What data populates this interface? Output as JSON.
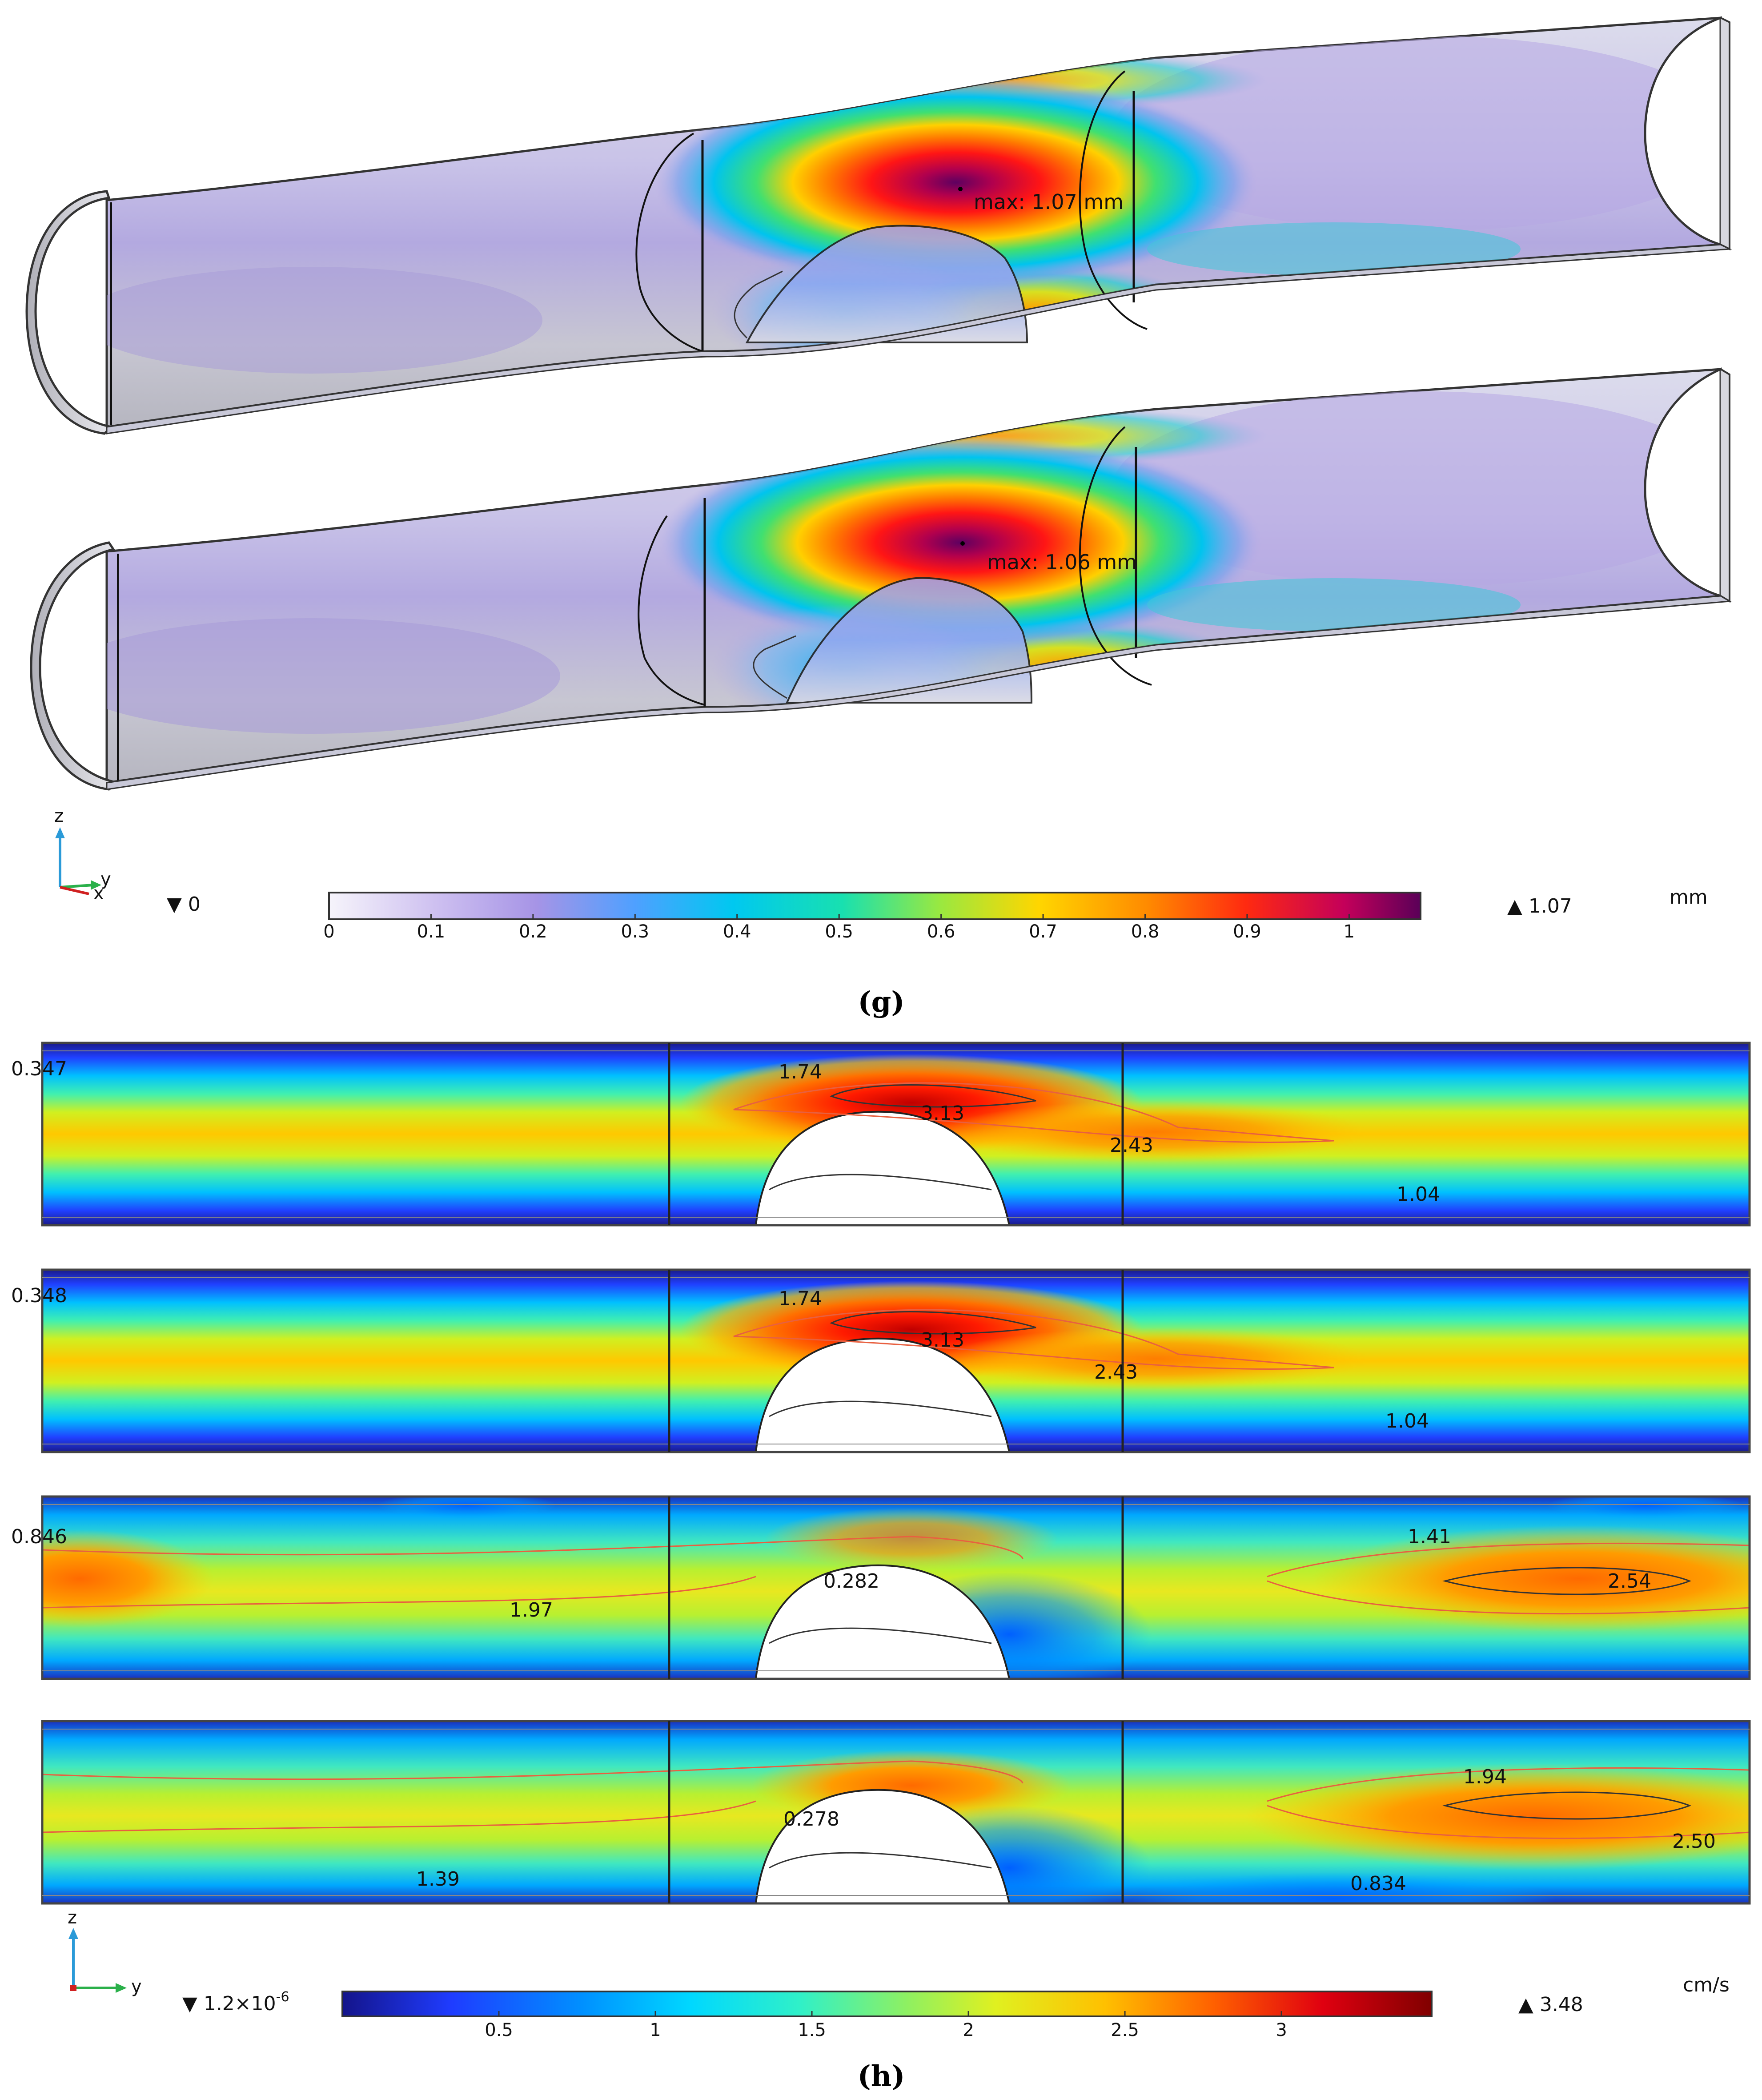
{
  "panel_g": {
    "caption": "(g)",
    "vessel_top": {
      "max_label": "max: 1.07 mm"
    },
    "vessel_bottom": {
      "max_label": "max: 1.06 mm"
    },
    "axes": {
      "z": "z",
      "y": "y",
      "x": "x"
    },
    "colorbar": {
      "min_label": "▼ 0",
      "max_label": "▲ 1.07",
      "unit": "mm",
      "ticks": [
        "0",
        "0.1",
        "0.2",
        "0.3",
        "0.4",
        "0.5",
        "0.6",
        "0.7",
        "0.8",
        "0.9",
        "1"
      ],
      "colormap": "magenta-red-yellow-green-cyan-lavender",
      "colors": [
        "#f4f2fa",
        "#b79fe6",
        "#8f7fe2",
        "#3aa7ff",
        "#00d7e8",
        "#37e88c",
        "#c7e62a",
        "#ffc400",
        "#ff7a00",
        "#ff1f1f",
        "#c8005a",
        "#6a0057"
      ]
    }
  },
  "panel_h": {
    "caption": "(h)",
    "strips": [
      {
        "left_label": "0.347",
        "contours": [
          "1.74",
          "3.13",
          "2.43",
          "1.04"
        ]
      },
      {
        "left_label": "0.348",
        "contours": [
          "1.74",
          "3.13",
          "2.43",
          "1.04"
        ]
      },
      {
        "left_label": "0.846",
        "contours": [
          "1.97",
          "0.282",
          "1.41",
          "2.54"
        ]
      },
      {
        "left_label": "",
        "contours": [
          "1.39",
          "0.278",
          "1.94",
          "2.50",
          "0.834"
        ]
      }
    ],
    "axes": {
      "z": "z",
      "y": "y"
    },
    "colorbar": {
      "min_label": "▼ 1.2×10",
      "min_exp": "-6",
      "max_label": "▲ 3.48",
      "unit": "cm/s",
      "ticks": [
        "0.5",
        "1",
        "1.5",
        "2",
        "2.5",
        "3"
      ],
      "colormap": "jet",
      "colors": [
        "#1a1a9a",
        "#1f4bff",
        "#00b5ff",
        "#20ecd8",
        "#8ff06a",
        "#e8f020",
        "#ffb000",
        "#ff5a00",
        "#e0001a",
        "#8a0000"
      ]
    }
  }
}
